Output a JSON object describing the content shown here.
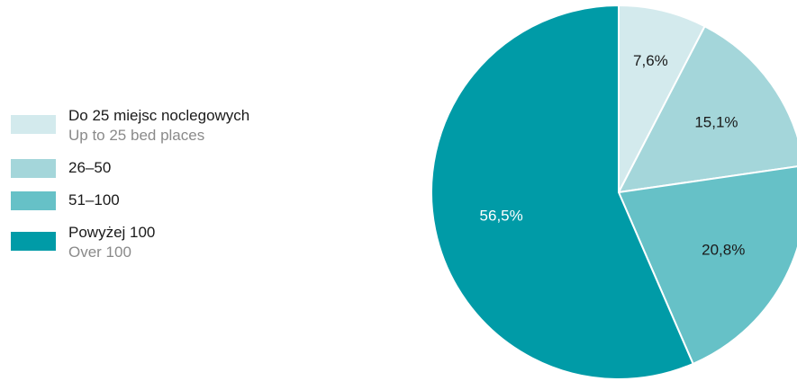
{
  "chart_data": {
    "type": "pie",
    "slices": [
      {
        "label_pl": "Do 25 miejsc noclegowych",
        "label_en": "Up to 25 bed places",
        "value": 7.6,
        "display": "7,6%",
        "color": "#d3eaed",
        "label_color": "#1a1a1a"
      },
      {
        "label_pl": "26–50",
        "label_en": "",
        "value": 15.1,
        "display": "15,1%",
        "color": "#a4d6da",
        "label_color": "#1a1a1a"
      },
      {
        "label_pl": "51–100",
        "label_en": "",
        "value": 20.8,
        "display": "20,8%",
        "color": "#66c1c7",
        "label_color": "#1a1a1a"
      },
      {
        "label_pl": "Powyżej 100",
        "label_en": "Over 100",
        "value": 56.5,
        "display": "56,5%",
        "color": "#009ba7",
        "label_color": "#ffffff"
      }
    ]
  }
}
